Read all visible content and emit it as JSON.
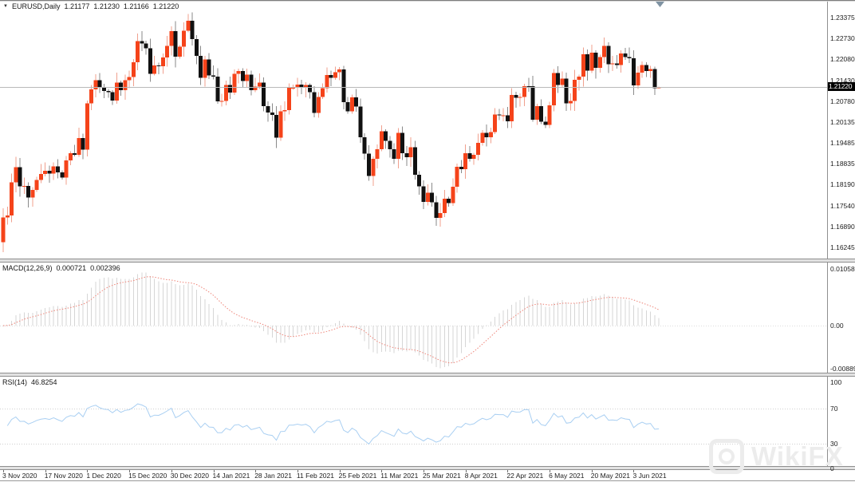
{
  "header": {
    "symbol_period": "EURUSD,Daily",
    "open": "1.21177",
    "high": "1.21230",
    "low": "1.21166",
    "close": "1.21220"
  },
  "price_axis": {
    "current_tag": "1.21220",
    "ticks": [
      "1.23375",
      "1.22730",
      "1.22080",
      "1.21430",
      "1.20780",
      "1.20135",
      "1.19485",
      "1.18835",
      "1.18190",
      "1.17540",
      "1.16890",
      "1.16245"
    ]
  },
  "macd_panel": {
    "label": "MACD(12,26,9)",
    "main_value": "0.000721",
    "signal_value": "0.002396",
    "ticks": [
      {
        "label": "0.01058",
        "value": 0.01058
      },
      {
        "label": "0.00",
        "value": 0.0
      },
      {
        "label": "-0.008894",
        "value": -0.008894
      }
    ]
  },
  "rsi_panel": {
    "label": "RSI(14)",
    "value": "46.8254",
    "ticks": [
      {
        "label": "100",
        "value": 100
      },
      {
        "label": "70",
        "value": 70
      },
      {
        "label": "30",
        "value": 30
      },
      {
        "label": "0",
        "value": 0
      }
    ],
    "levels": [
      70,
      30
    ]
  },
  "watermark": {
    "text": "WikiFX"
  },
  "colors": {
    "bull": "#f5431a",
    "bear": "#111111",
    "bull_wick": "#f0a08e",
    "bear_wick": "#8a8a8a",
    "macd_hist": "#d6d6d6",
    "macd_signal": "#ee8478",
    "rsi_line": "#a9cff2",
    "price_line": "#b9b9b9",
    "level_dotted": "#cfcfcf",
    "axis_line": "#8f8f8f",
    "tag_bg": "#000000",
    "tag_text": "#ffffff",
    "shift_marker": "#7f93a3"
  },
  "chart_data": {
    "type": "candlestick",
    "symbol": "EURUSD",
    "timeframe": "Daily",
    "price_axis_range": [
      1.16245,
      1.23375
    ],
    "first_open": 1.164,
    "closes": [
      1.1717,
      1.1723,
      1.1826,
      1.1873,
      1.1813,
      1.1815,
      1.1779,
      1.1803,
      1.1834,
      1.1852,
      1.1862,
      1.1853,
      1.1876,
      1.1857,
      1.1841,
      1.1894,
      1.1917,
      1.1912,
      1.1963,
      1.1927,
      1.2071,
      1.2115,
      1.2143,
      1.2121,
      1.2109,
      1.2106,
      1.208,
      1.2135,
      1.2112,
      1.2143,
      1.2153,
      1.2199,
      1.2265,
      1.2257,
      1.2242,
      1.2163,
      1.2189,
      1.2187,
      1.2214,
      1.225,
      1.2296,
      1.2216,
      1.2247,
      1.2297,
      1.2327,
      1.227,
      1.2218,
      1.2151,
      1.2208,
      1.2158,
      1.2154,
      1.2078,
      1.2079,
      1.2128,
      1.2105,
      1.2163,
      1.2171,
      1.214,
      1.216,
      1.2112,
      1.2123,
      1.2136,
      1.2062,
      1.2043,
      1.2035,
      1.1965,
      1.2047,
      1.205,
      1.2119,
      1.2119,
      1.213,
      1.212,
      1.2128,
      1.2106,
      1.2041,
      1.2091,
      1.2118,
      1.2159,
      1.215,
      1.2168,
      1.2176,
      1.2075,
      1.2047,
      1.209,
      1.2061,
      1.1966,
      1.1915,
      1.1846,
      1.1899,
      1.1929,
      1.1985,
      1.1955,
      1.1929,
      1.1899,
      1.198,
      1.1917,
      1.1904,
      1.1935,
      1.185,
      1.1813,
      1.1765,
      1.1794,
      1.1764,
      1.1716,
      1.173,
      1.1775,
      1.1761,
      1.1812,
      1.1874,
      1.1867,
      1.1916,
      1.1899,
      1.1911,
      1.1948,
      1.1979,
      1.1966,
      1.1982,
      1.2037,
      1.2034,
      1.2034,
      1.2015,
      1.2097,
      1.2089,
      1.2091,
      1.2125,
      1.2124,
      1.2021,
      1.2063,
      1.2014,
      1.2004,
      1.2065,
      1.2165,
      1.2128,
      1.2148,
      1.2071,
      1.2079,
      1.2144,
      1.2154,
      1.2224,
      1.2173,
      1.2228,
      1.2181,
      1.2215,
      1.225,
      1.2192,
      1.2195,
      1.219,
      1.2226,
      1.2215,
      1.2211,
      1.2127,
      1.2166,
      1.219,
      1.2172,
      1.2178,
      1.21177,
      1.2122
    ],
    "last_bar": {
      "open": 1.21177,
      "high": 1.2123,
      "low": 1.21166,
      "close": 1.2122
    },
    "wick_overrides": {
      "highs": {
        "44": 1.2349
      },
      "lows": {
        "0": 1.1609
      }
    },
    "x_ticks": [
      [
        0,
        "3 Nov 2020"
      ],
      [
        10,
        "17 Nov 2020"
      ],
      [
        20,
        "1 Dec 2020"
      ],
      [
        30,
        "15 Dec 2020"
      ],
      [
        40,
        "30 Dec 2020"
      ],
      [
        50,
        "14 Jan 2021"
      ],
      [
        60,
        "28 Jan 2021"
      ],
      [
        70,
        "11 Feb 2021"
      ],
      [
        80,
        "25 Feb 2021"
      ],
      [
        90,
        "11 Mar 2021"
      ],
      [
        100,
        "25 Mar 2021"
      ],
      [
        110,
        "8 Apr 2021"
      ],
      [
        120,
        "22 Apr 2021"
      ],
      [
        130,
        "6 May 2021"
      ],
      [
        140,
        "20 May 2021"
      ],
      [
        150,
        "3 Jun 2021"
      ]
    ],
    "indicators": [
      {
        "name": "MACD",
        "params": [
          12,
          26,
          9
        ],
        "current_main": 0.000721,
        "current_signal": 0.002396,
        "axis_range": [
          -0.008894,
          0.01058
        ],
        "style": "histogram+dotted-signal"
      },
      {
        "name": "RSI",
        "params": [
          14
        ],
        "current": 46.8254,
        "axis_range": [
          0,
          100
        ],
        "levels": [
          30,
          70
        ]
      }
    ],
    "current_price": 1.2122
  }
}
